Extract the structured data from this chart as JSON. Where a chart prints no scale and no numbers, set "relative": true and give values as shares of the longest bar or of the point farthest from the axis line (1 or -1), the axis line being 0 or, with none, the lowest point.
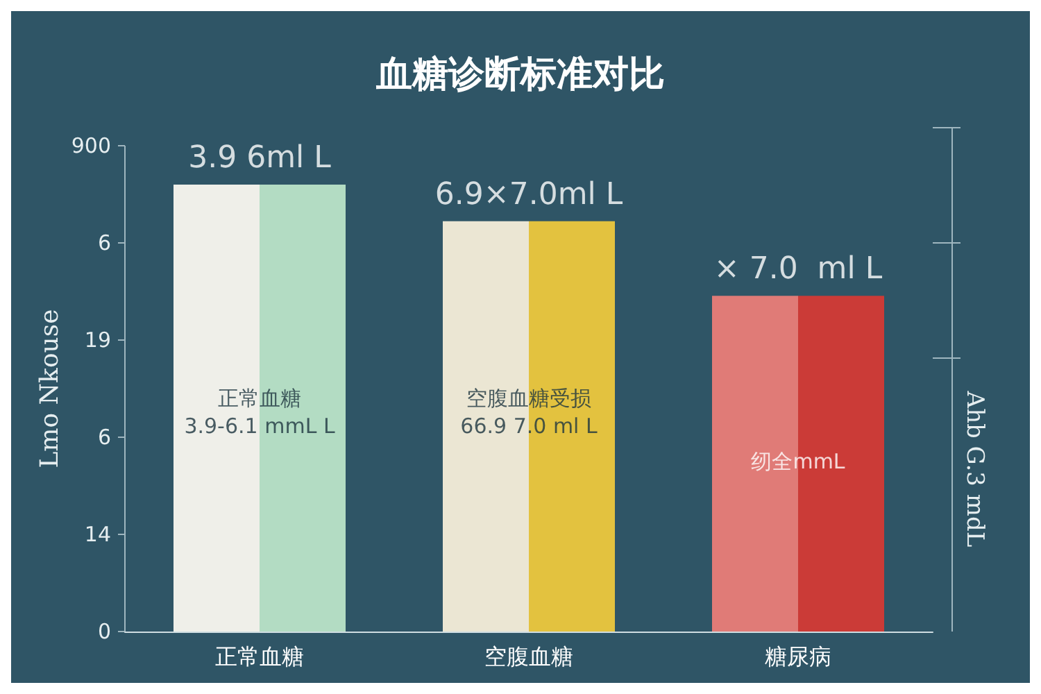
{
  "chart_data": {
    "type": "bar",
    "relative": true,
    "title": "血糖诊断标准对比",
    "ylabel": "Lmo Nkouse",
    "y2label": "Ahb G.3 mdL",
    "categories": [
      "正常血糖",
      "空腹血糖",
      "糖尿病"
    ],
    "series": [
      {
        "colors": [
          "#efefe9",
          "#ebe6d3",
          "#e07b77"
        ],
        "values": [
          1,
          0.918,
          0.751
        ]
      },
      {
        "colors": [
          "#b3dcc3",
          "#e3c23f",
          "#cb3b37"
        ],
        "values": [
          1,
          0.918,
          0.751
        ]
      }
    ],
    "annotations": [
      {
        "text": "3.9 6ml L",
        "x": "正常血糖",
        "y": 1
      },
      {
        "text": "6.9×7.0ml L",
        "x": "空腹血糖",
        "y": 0.918
      },
      {
        "text": "× 7.0  ml L",
        "x": "糖尿病",
        "y": 0.751
      },
      {
        "text": "正常血糖\n3.9-6.1 mmL L",
        "x": "正常血糖",
        "y": 0.49
      },
      {
        "text": "空腹血糖受损\n66.9 7.0 ml L",
        "x": "空腹血糖",
        "y": 0.49
      },
      {
        "text": "纫全mmL",
        "x": "糖尿病",
        "y": 0.38
      },
      "0",
      "14",
      "6",
      "19",
      "6",
      "900"
    ],
    "grid": false
  }
}
